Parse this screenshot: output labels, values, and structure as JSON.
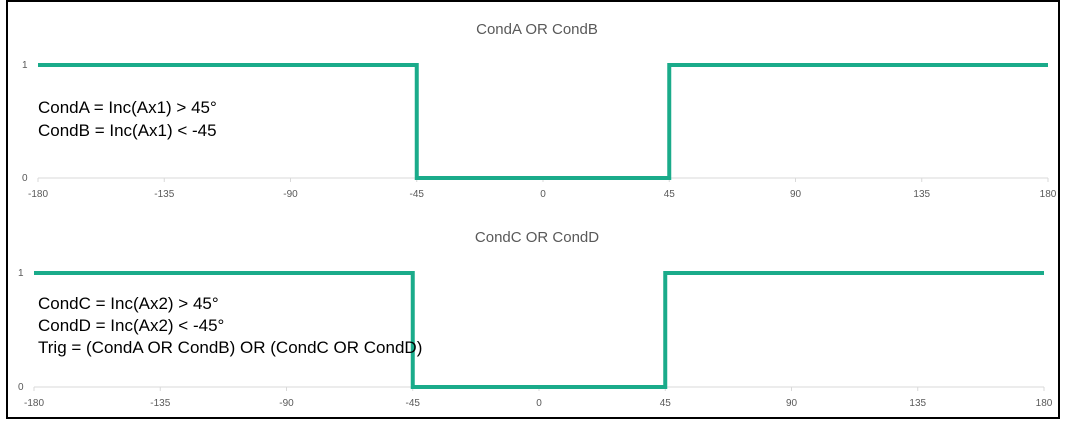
{
  "theme": {
    "line_color": "#1aab8a"
  },
  "chart_data": [
    {
      "type": "line",
      "title": "CondA OR CondB",
      "x": [
        -180,
        -45,
        -45,
        45,
        45,
        180
      ],
      "series": [
        {
          "values": [
            1,
            1,
            0,
            0,
            1,
            1
          ]
        }
      ],
      "xlim": [
        -180,
        180
      ],
      "ylim": [
        0,
        1
      ],
      "xticks": [
        -180,
        -135,
        -90,
        -45,
        0,
        45,
        90,
        135,
        180
      ],
      "yticks": [
        0,
        1
      ],
      "xlabel": "",
      "ylabel": "",
      "grid": false,
      "annotations": [
        "CondA = Inc(Ax1) > 45°",
        "CondB = Inc(Ax1) < -45"
      ]
    },
    {
      "type": "line",
      "title": "CondC OR CondD",
      "x": [
        -180,
        -45,
        -45,
        45,
        45,
        180
      ],
      "series": [
        {
          "values": [
            1,
            1,
            0,
            0,
            1,
            1
          ]
        }
      ],
      "xlim": [
        -180,
        180
      ],
      "ylim": [
        0,
        1
      ],
      "xticks": [
        -180,
        -135,
        -90,
        -45,
        0,
        45,
        90,
        135,
        180
      ],
      "yticks": [
        0,
        1
      ],
      "xlabel": "",
      "ylabel": "",
      "grid": false,
      "annotations": [
        "CondC = Inc(Ax2) > 45°",
        "CondD = Inc(Ax2) < -45°",
        "Trig = (CondA OR CondB) OR (CondC OR CondD)"
      ]
    }
  ]
}
